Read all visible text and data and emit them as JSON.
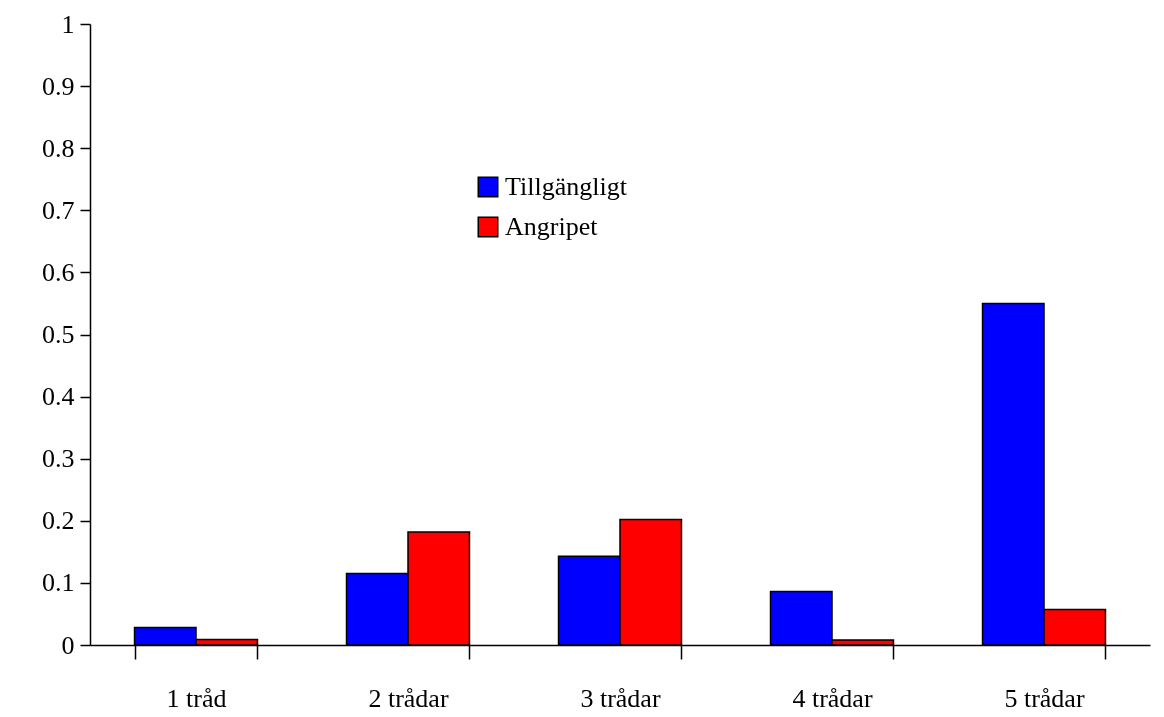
{
  "chart_data": {
    "type": "bar",
    "categories": [
      "1 tråd",
      "2 trådar",
      "3 trådar",
      "4 trådar",
      "5 trådar"
    ],
    "series": [
      {
        "name": "Tillgängligt",
        "color": "#0000ff",
        "values": [
          0.028,
          0.115,
          0.143,
          0.086,
          0.55
        ]
      },
      {
        "name": "Angripet",
        "color": "#ff0000",
        "values": [
          0.009,
          0.182,
          0.202,
          0.008,
          0.057
        ]
      }
    ],
    "ylim": [
      0,
      1
    ],
    "yticks": [
      0,
      0.1,
      0.2,
      0.3,
      0.4,
      0.5,
      0.6,
      0.7,
      0.8,
      0.9,
      1
    ],
    "grid": false,
    "legend": "top"
  }
}
